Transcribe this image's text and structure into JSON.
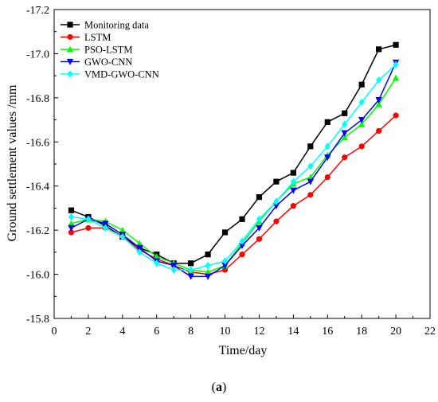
{
  "chart_data": {
    "type": "line",
    "x": [
      1,
      2,
      3,
      4,
      5,
      6,
      7,
      8,
      9,
      10,
      11,
      12,
      13,
      14,
      15,
      16,
      17,
      18,
      19,
      20
    ],
    "series": [
      {
        "name": "Monitoring data",
        "color": "#000000",
        "marker": "square",
        "values": [
          -16.29,
          -16.26,
          -16.22,
          -16.17,
          -16.12,
          -16.09,
          -16.05,
          -16.05,
          -16.09,
          -16.19,
          -16.25,
          -16.35,
          -16.42,
          -16.46,
          -16.58,
          -16.69,
          -16.73,
          -16.86,
          -17.02,
          -17.04
        ]
      },
      {
        "name": "LSTM",
        "color": "#ff0000",
        "marker": "circle",
        "values": [
          -16.19,
          -16.21,
          -16.21,
          -16.17,
          -16.11,
          -16.07,
          -16.04,
          -16.01,
          -16.0,
          -16.02,
          -16.09,
          -16.16,
          -16.24,
          -16.31,
          -16.36,
          -16.44,
          -16.53,
          -16.58,
          -16.65,
          -16.72
        ]
      },
      {
        "name": "PSO-LSTM",
        "color": "#00ff00",
        "marker": "triangle-up",
        "values": [
          -16.23,
          -16.25,
          -16.24,
          -16.2,
          -16.14,
          -16.08,
          -16.05,
          -16.02,
          -16.01,
          -16.04,
          -16.14,
          -16.24,
          -16.33,
          -16.41,
          -16.44,
          -16.54,
          -16.62,
          -16.68,
          -16.77,
          -16.89
        ]
      },
      {
        "name": "GWO-CNN",
        "color": "#0000ff",
        "marker": "triangle-down",
        "values": [
          -16.21,
          -16.25,
          -16.23,
          -16.18,
          -16.12,
          -16.06,
          -16.04,
          -15.99,
          -15.99,
          -16.04,
          -16.13,
          -16.21,
          -16.31,
          -16.38,
          -16.42,
          -16.53,
          -16.64,
          -16.7,
          -16.79,
          -16.96
        ]
      },
      {
        "name": "VMD-GWO-CNN",
        "color": "#00ffff",
        "marker": "diamond",
        "values": [
          -16.26,
          -16.25,
          -16.21,
          -16.17,
          -16.1,
          -16.05,
          -16.02,
          -16.02,
          -16.04,
          -16.06,
          -16.15,
          -16.25,
          -16.33,
          -16.42,
          -16.49,
          -16.58,
          -16.68,
          -16.78,
          -16.88,
          -16.95
        ]
      }
    ],
    "xlabel": "Time/day",
    "ylabel": "Ground settlement values /mm",
    "xlim": [
      0,
      22
    ],
    "ylim": [
      -15.8,
      -17.2
    ],
    "xticks": [
      "0",
      "2",
      "4",
      "6",
      "8",
      "10",
      "12",
      "14",
      "16",
      "18",
      "20",
      "22"
    ],
    "yticks": [
      "-15.8",
      "-16.0",
      "-16.2",
      "-16.4",
      "-16.6",
      "-16.8",
      "-17.0",
      "-17.2"
    ],
    "legend_position": "top-left",
    "grid": false
  },
  "caption": {
    "open": "(",
    "label": "a",
    "close": ")"
  }
}
